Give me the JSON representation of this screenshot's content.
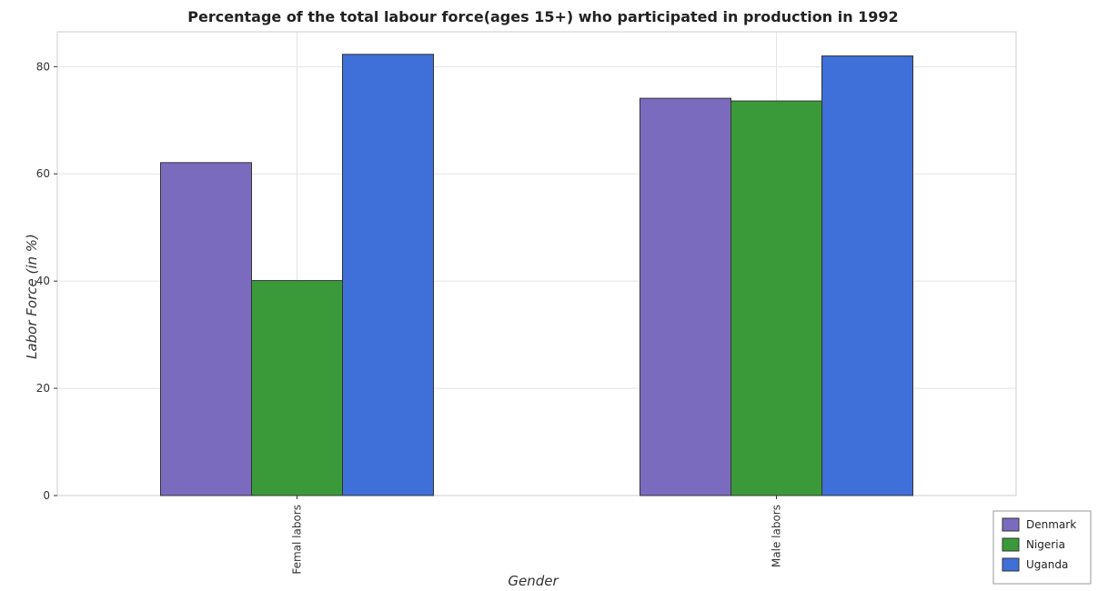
{
  "chart_data": {
    "type": "bar",
    "title": "Percentage of the total labour force(ages 15+) who participated in production in 1992",
    "xlabel": "Gender",
    "ylabel": "Labor Force (in %)",
    "categories": [
      "Femal labors",
      "Male labors"
    ],
    "series": [
      {
        "name": "Denmark",
        "color": "#7b6bbf",
        "values": [
          62.1,
          74.1
        ]
      },
      {
        "name": "Nigeria",
        "color": "#3a9a3a",
        "values": [
          40.1,
          73.6
        ]
      },
      {
        "name": "Uganda",
        "color": "#3f6fd8",
        "values": [
          82.3,
          82.0
        ]
      }
    ],
    "yticks": [
      0,
      20,
      40,
      60,
      80
    ],
    "ylim": [
      0,
      86.5
    ],
    "grid": true,
    "legend_position": "bottom-right"
  }
}
